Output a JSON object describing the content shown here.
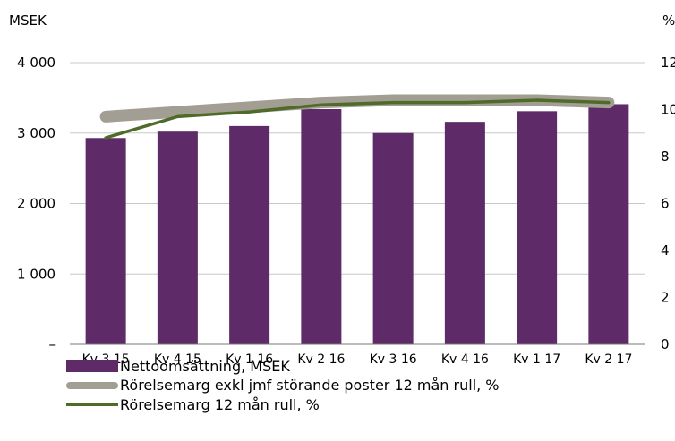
{
  "chart_data": {
    "type": "bar+line",
    "left_unit": "MSEK",
    "right_unit": "%",
    "categories": [
      "Kv 3 15",
      "Kv 4 15",
      "Kv 1 16",
      "Kv 2 16",
      "Kv 3 16",
      "Kv 4 16",
      "Kv 1 17",
      "Kv 2 17"
    ],
    "y_left": {
      "ylim": [
        0,
        4000
      ],
      "ticks": [
        0,
        1000,
        2000,
        3000,
        4000
      ],
      "tick_labels": [
        "–",
        "1 000",
        "2 000",
        "3 000",
        "4 000"
      ]
    },
    "y_right": {
      "ylim": [
        0,
        12
      ],
      "ticks": [
        0,
        2,
        4,
        6,
        8,
        10,
        12
      ],
      "tick_labels": [
        "0",
        "2",
        "4",
        "6",
        "8",
        "10",
        "12"
      ]
    },
    "grid": true,
    "series": [
      {
        "name": "Nettoomsättning, MSEK",
        "type": "bar",
        "axis": "left",
        "color": "#5e2a67",
        "values": [
          2930,
          3020,
          3100,
          3340,
          3000,
          3160,
          3310,
          3410
        ]
      },
      {
        "name": "Rörelsemarg exkl jmf störande poster 12 mån rull, %",
        "type": "line",
        "axis": "right",
        "color": "#a39e93",
        "width": "thick",
        "values": [
          9.7,
          9.9,
          10.1,
          10.3,
          10.4,
          10.4,
          10.4,
          10.3
        ]
      },
      {
        "name": "Rörelsemarg 12 mån rull, %",
        "type": "line",
        "axis": "right",
        "color": "#4e6b2a",
        "width": "thin",
        "values": [
          8.8,
          9.7,
          9.9,
          10.2,
          10.3,
          10.3,
          10.4,
          10.3
        ]
      }
    ],
    "legend_position": "bottom-left"
  }
}
